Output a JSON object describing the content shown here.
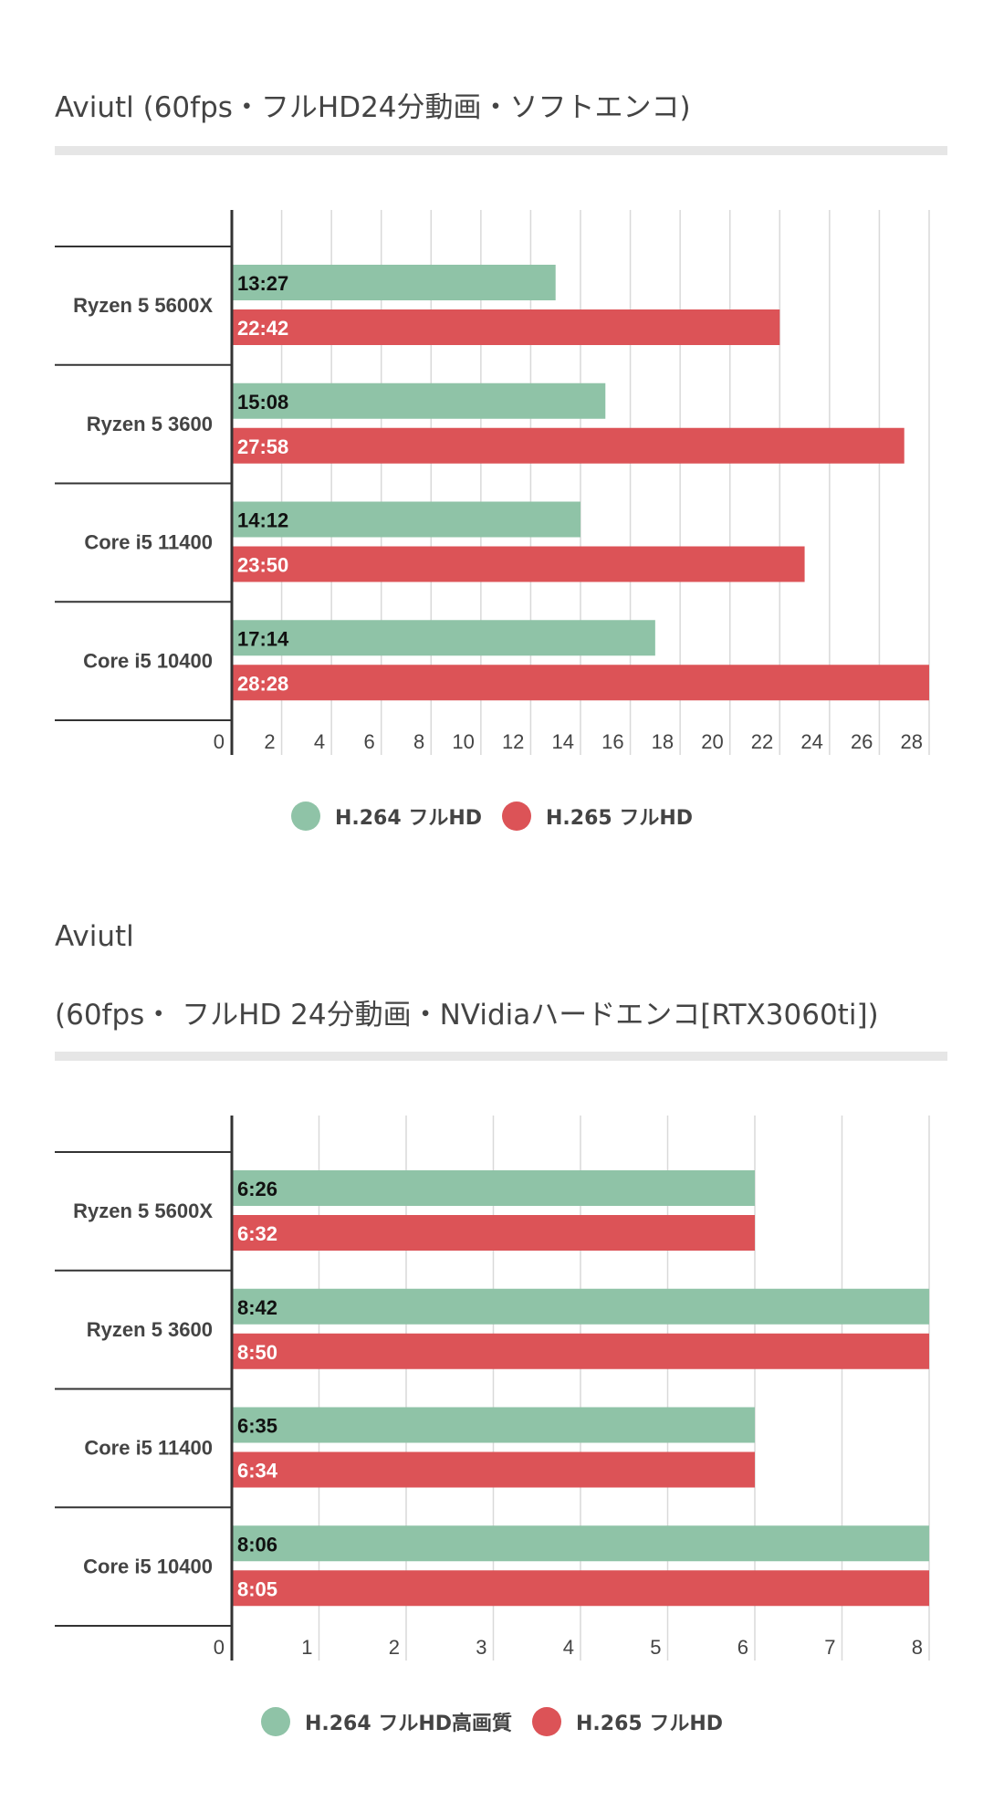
{
  "colors": {
    "h264": "#8fc3a7",
    "h265": "#dc5357"
  },
  "chart_data": [
    {
      "type": "bar",
      "orientation": "horizontal",
      "title": "Aviutl (60fps・フルHD24分動画・ソフトエンコ)",
      "categories": [
        "Ryzen 5 5600X",
        "Ryzen 5 3600",
        "Core i5 11400",
        "Core i5 10400"
      ],
      "series": [
        {
          "name": "H.264 フルHD",
          "values": [
            13,
            15,
            14,
            17
          ],
          "labels": [
            "13:27",
            "15:08",
            "14:12",
            "17:14"
          ]
        },
        {
          "name": "H.265 フルHD",
          "values": [
            22,
            27,
            23,
            28
          ],
          "labels": [
            "22:42",
            "27:58",
            "23:50",
            "28:28"
          ]
        }
      ],
      "xlim": [
        0,
        28
      ],
      "ticks": [
        "0",
        "2",
        "4",
        "6",
        "8",
        "10",
        "12",
        "14",
        "16",
        "18",
        "20",
        "22",
        "24",
        "26",
        "28"
      ],
      "grid": true,
      "legend": "bottom"
    },
    {
      "type": "bar",
      "orientation": "horizontal",
      "title": "Aviutl",
      "subtitle": "(60fps・ フルHD 24分動画・NVidiaハードエンコ[RTX3060ti])",
      "categories": [
        "Ryzen 5 5600X",
        "Ryzen 5 3600",
        "Core i5 11400",
        "Core i5 10400"
      ],
      "series": [
        {
          "name": "H.264 フルHD高画質",
          "values": [
            6,
            8,
            6,
            8
          ],
          "labels": [
            "6:26",
            "8:42",
            "6:35",
            "8:06"
          ]
        },
        {
          "name": "H.265 フルHD",
          "values": [
            6,
            8,
            6,
            8
          ],
          "labels": [
            "6:32",
            "8:50",
            "6:34",
            "8:05"
          ]
        }
      ],
      "xlim": [
        0,
        8
      ],
      "ticks": [
        "0",
        "1",
        "2",
        "3",
        "4",
        "5",
        "6",
        "7",
        "8"
      ],
      "grid": true,
      "legend": "bottom"
    }
  ]
}
